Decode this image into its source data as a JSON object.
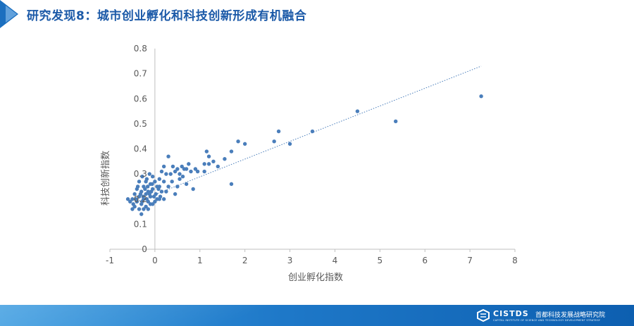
{
  "slide": {
    "title": "研究发现8：城市创业孵化和科技创新形成有机融合"
  },
  "footer": {
    "logo_name": "CISTDS",
    "logo_cn": "首都科技发展战略研究院",
    "logo_en": "CAPITAL INSTITUTE OF SCIENCE AND TECHNOLOGY DEVELOPMENT STRATEGY"
  },
  "colors": {
    "accent": "#1c5aa8",
    "points": "#4a7ebb",
    "trendline": "#4a7ebb",
    "axis": "#bfbfbf",
    "text": "#595959"
  },
  "chart_data": {
    "type": "scatter",
    "xlabel": "创业孵化指数",
    "ylabel": "科技创新指数",
    "xlim": [
      -1,
      8
    ],
    "ylim": [
      0,
      0.8
    ],
    "x_ticks": [
      "-1",
      "0",
      "1",
      "2",
      "3",
      "4",
      "5",
      "6",
      "7",
      "8"
    ],
    "y_ticks": [
      "0",
      "0.1",
      "0.2",
      "0.3",
      "0.4",
      "0.5",
      "0.6",
      "0.7",
      "0.8"
    ],
    "grid": false,
    "legend": "none",
    "trendline": {
      "style": "dotted",
      "x": [
        -0.4,
        7.25
      ],
      "y": [
        0.19,
        0.73
      ]
    },
    "series": [
      {
        "points": [
          [
            7.25,
            0.61
          ],
          [
            5.35,
            0.51
          ],
          [
            4.5,
            0.55
          ],
          [
            3.5,
            0.47
          ],
          [
            3.0,
            0.42
          ],
          [
            2.75,
            0.47
          ],
          [
            2.65,
            0.43
          ],
          [
            2.0,
            0.42
          ],
          [
            1.85,
            0.43
          ],
          [
            1.7,
            0.39
          ],
          [
            1.7,
            0.26
          ],
          [
            1.55,
            0.36
          ],
          [
            1.4,
            0.33
          ],
          [
            1.3,
            0.35
          ],
          [
            1.2,
            0.37
          ],
          [
            1.15,
            0.39
          ],
          [
            1.2,
            0.34
          ],
          [
            1.1,
            0.34
          ],
          [
            1.1,
            0.31
          ],
          [
            0.95,
            0.31
          ],
          [
            0.85,
            0.24
          ],
          [
            0.8,
            0.31
          ],
          [
            0.75,
            0.34
          ],
          [
            0.7,
            0.32
          ],
          [
            0.65,
            0.32
          ],
          [
            0.6,
            0.33
          ],
          [
            0.55,
            0.28
          ],
          [
            0.5,
            0.32
          ],
          [
            0.45,
            0.31
          ],
          [
            0.4,
            0.33
          ],
          [
            0.35,
            0.3
          ],
          [
            0.3,
            0.37
          ],
          [
            0.25,
            0.3
          ],
          [
            0.2,
            0.33
          ],
          [
            0.15,
            0.31
          ],
          [
            0.2,
            0.27
          ],
          [
            0.3,
            0.25
          ],
          [
            0.5,
            0.25
          ],
          [
            0.7,
            0.26
          ],
          [
            0.45,
            0.22
          ],
          [
            0.15,
            0.23
          ],
          [
            0.1,
            0.25
          ],
          [
            0.1,
            0.28
          ],
          [
            0.05,
            0.25
          ],
          [
            0.0,
            0.27
          ],
          [
            0.02,
            0.22
          ],
          [
            -0.05,
            0.29
          ],
          [
            -0.05,
            0.24
          ],
          [
            -0.1,
            0.21
          ],
          [
            -0.1,
            0.26
          ],
          [
            -0.15,
            0.23
          ],
          [
            -0.15,
            0.19
          ],
          [
            -0.2,
            0.27
          ],
          [
            -0.2,
            0.22
          ],
          [
            -0.25,
            0.25
          ],
          [
            -0.25,
            0.2
          ],
          [
            -0.3,
            0.23
          ],
          [
            -0.3,
            0.18
          ],
          [
            -0.35,
            0.21
          ],
          [
            -0.35,
            0.16
          ],
          [
            -0.4,
            0.19
          ],
          [
            -0.4,
            0.24
          ],
          [
            -0.45,
            0.17
          ],
          [
            -0.45,
            0.22
          ],
          [
            -0.5,
            0.2
          ],
          [
            -0.55,
            0.19
          ],
          [
            -0.6,
            0.2
          ],
          [
            -0.5,
            0.16
          ],
          [
            -0.3,
            0.14
          ],
          [
            -0.25,
            0.16
          ],
          [
            -0.2,
            0.17
          ],
          [
            -0.15,
            0.16
          ],
          [
            -0.1,
            0.18
          ],
          [
            -0.05,
            0.18
          ],
          [
            0.0,
            0.19
          ],
          [
            0.05,
            0.2
          ],
          [
            0.1,
            0.2
          ],
          [
            0.2,
            0.2
          ],
          [
            -0.35,
            0.27
          ],
          [
            -0.28,
            0.29
          ],
          [
            -0.18,
            0.28
          ],
          [
            -0.12,
            0.3
          ],
          [
            -0.22,
            0.24
          ],
          [
            -0.08,
            0.23
          ],
          [
            -0.02,
            0.21
          ],
          [
            -0.32,
            0.22
          ],
          [
            -0.42,
            0.2
          ],
          [
            -0.38,
            0.25
          ],
          [
            -0.26,
            0.21
          ],
          [
            -0.16,
            0.25
          ],
          [
            -0.06,
            0.26
          ],
          [
            0.08,
            0.24
          ],
          [
            -0.48,
            0.18
          ],
          [
            -0.28,
            0.19
          ],
          [
            -0.18,
            0.2
          ],
          [
            -0.12,
            0.22
          ],
          [
            0.12,
            0.21
          ],
          [
            0.25,
            0.23
          ],
          [
            0.38,
            0.27
          ],
          [
            0.55,
            0.3
          ],
          [
            0.62,
            0.29
          ],
          [
            0.9,
            0.32
          ]
        ]
      }
    ]
  }
}
